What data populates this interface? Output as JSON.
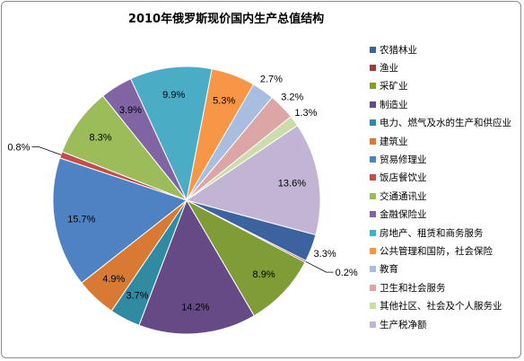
{
  "chart_data": {
    "type": "pie",
    "title": "2010年俄罗斯现价国内生产总值结构",
    "legend_position": "right",
    "slices": [
      {
        "name": "农猎林业",
        "value": 3.3,
        "label": "3.3%",
        "color": "#3d62a0"
      },
      {
        "name": "渔业",
        "value": 0.2,
        "label": "0.2%",
        "color": "#a33b3a"
      },
      {
        "name": "采矿业",
        "value": 8.9,
        "label": "8.9%",
        "color": "#7f9c37"
      },
      {
        "name": "制造业",
        "value": 14.2,
        "label": "14.2%",
        "color": "#654a86"
      },
      {
        "name": "电力、燃气及水的生产和供应业",
        "value": 3.7,
        "label": "3.7%",
        "color": "#2f8aa2"
      },
      {
        "name": "建筑业",
        "value": 4.9,
        "label": "4.9%",
        "color": "#d87a33"
      },
      {
        "name": "贸易修理业",
        "value": 15.7,
        "label": "15.7%",
        "color": "#4f82c3"
      },
      {
        "name": "饭店餐饮业",
        "value": 0.8,
        "label": "0.8%",
        "color": "#c04e4b"
      },
      {
        "name": "交通通讯业",
        "value": 8.3,
        "label": "8.3%",
        "color": "#9bbc58"
      },
      {
        "name": "金融保险业",
        "value": 3.9,
        "label": "3.9%",
        "color": "#8064a3"
      },
      {
        "name": "房地产、租赁和商务服务",
        "value": 9.9,
        "label": "9.9%",
        "color": "#4bacc6"
      },
      {
        "name": "公共管理和国防，社会保险",
        "value": 5.3,
        "label": "5.3%",
        "color": "#f79646"
      },
      {
        "name": "教育",
        "value": 2.7,
        "label": "2.7%",
        "color": "#a9bde0"
      },
      {
        "name": "卫生和社会服务",
        "value": 3.2,
        "label": "3.2%",
        "color": "#dba6a5"
      },
      {
        "name": "其他社区、社会及个人服务业",
        "value": 1.3,
        "label": "1.3%",
        "color": "#cddcaa"
      },
      {
        "name": "生产税净额",
        "value": 13.6,
        "label": "13.6%",
        "color": "#c1b5d3"
      }
    ]
  }
}
